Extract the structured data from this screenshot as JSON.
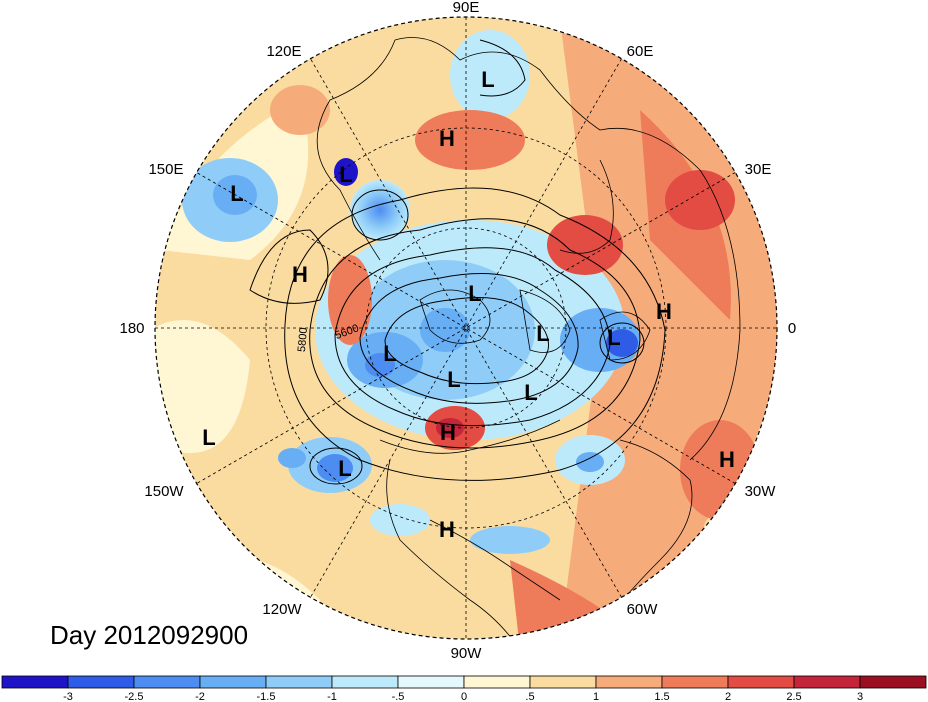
{
  "day_label": "Day 2012092900",
  "longitude_labels": [
    "90E",
    "60E",
    "30E",
    "0",
    "30W",
    "60W",
    "90W",
    "120W",
    "150W",
    "180",
    "150E",
    "120E"
  ],
  "contour_labels": [
    "5800",
    "5600"
  ],
  "pressure_centers": [
    {
      "type": "L",
      "name": "l-siberia-north"
    },
    {
      "type": "H",
      "name": "h-siberia"
    },
    {
      "type": "L",
      "name": "l-kamchatka-1"
    },
    {
      "type": "L",
      "name": "l-pacific-west"
    },
    {
      "type": "H",
      "name": "h-pacific"
    },
    {
      "type": "L",
      "name": "l-arctic-1"
    },
    {
      "type": "L",
      "name": "l-arctic-2"
    },
    {
      "type": "L",
      "name": "l-beaufort"
    },
    {
      "type": "L",
      "name": "l-europe"
    },
    {
      "type": "H",
      "name": "h-europe"
    },
    {
      "type": "L",
      "name": "l-canada"
    },
    {
      "type": "L",
      "name": "l-labrador"
    },
    {
      "type": "H",
      "name": "h-central-us"
    },
    {
      "type": "L",
      "name": "l-pacific-east"
    },
    {
      "type": "L",
      "name": "l-gulf-alaska"
    },
    {
      "type": "H",
      "name": "h-atlantic"
    },
    {
      "type": "H",
      "name": "h-mexico"
    }
  ],
  "colorbar": {
    "tick_labels": [
      "-3",
      "-2.5",
      "-2",
      "-1.5",
      "-1",
      "-.5",
      "0",
      ".5",
      "1",
      "1.5",
      "2",
      "2.5",
      "3"
    ],
    "colors": [
      "#1f13c8",
      "#2f5ce6",
      "#4d8df2",
      "#68aef5",
      "#8fcdf8",
      "#bdeafa",
      "#e6f8fb",
      "#fff6d4",
      "#fbdca0",
      "#f6ab7b",
      "#ee7c5a",
      "#e24c42",
      "#c4253a",
      "#9a0f22"
    ]
  }
}
